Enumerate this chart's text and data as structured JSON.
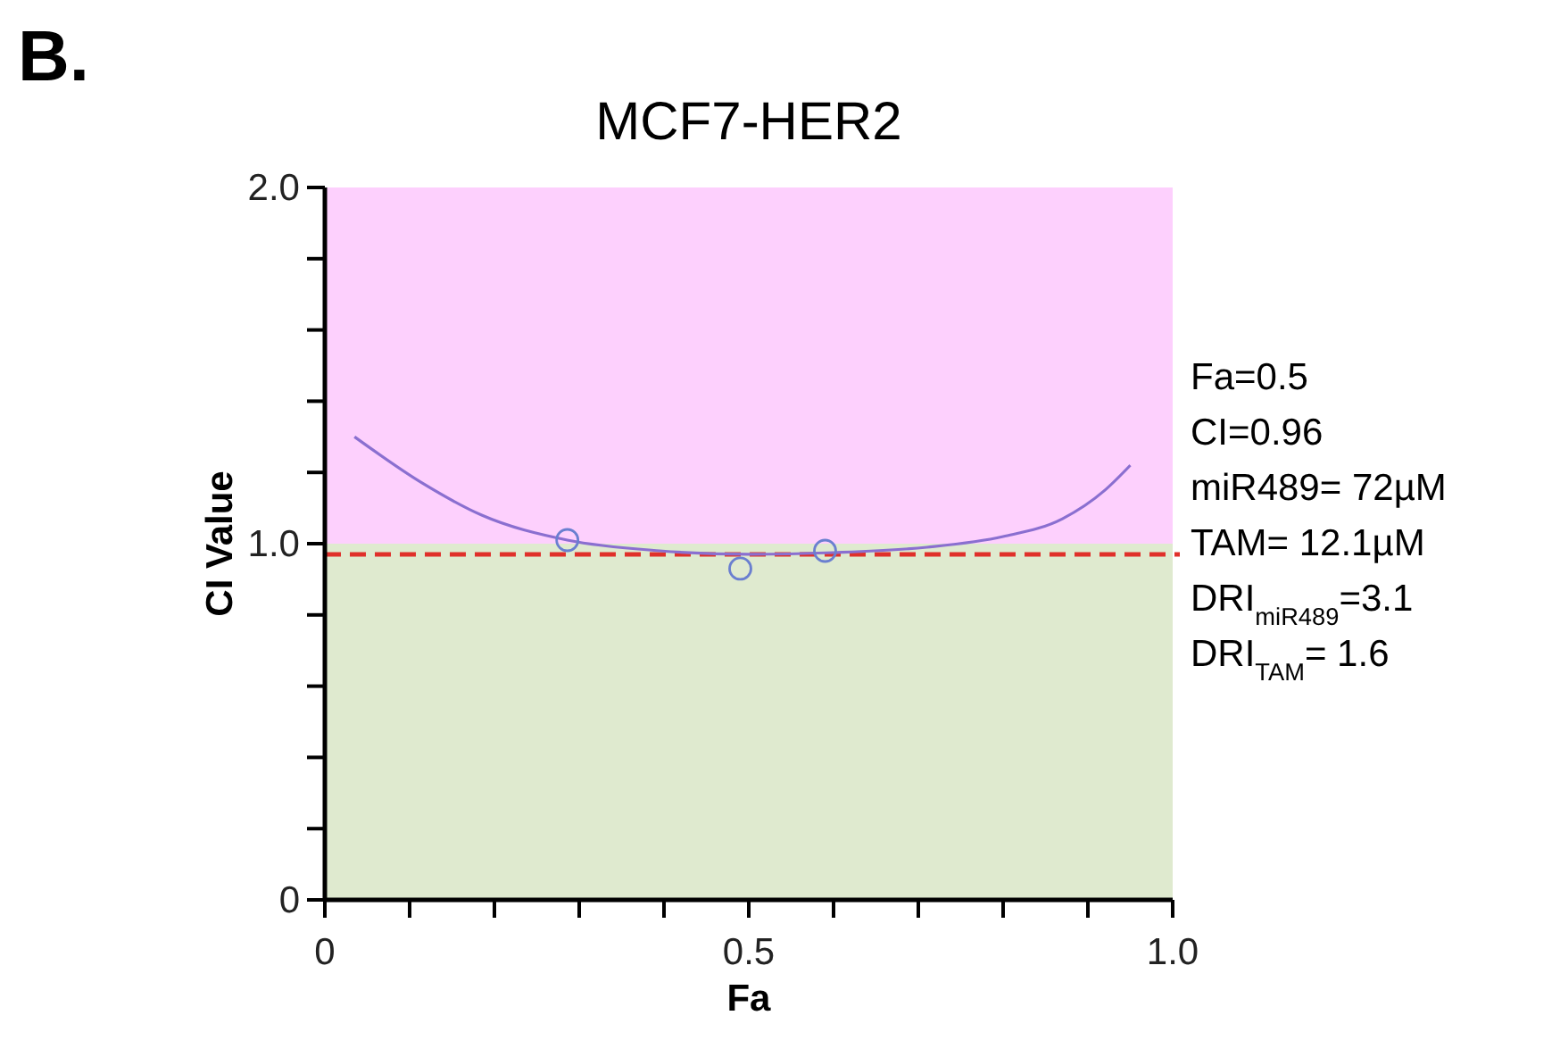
{
  "chart_data": {
    "type": "line",
    "title": "MCF7-HER2",
    "xlabel": "Fa",
    "ylabel": "CI Value",
    "xlim": [
      0,
      1
    ],
    "xticks": [
      0,
      {
        "value": 0.1,
        "label": null
      },
      {
        "value": 0.2,
        "label": null
      },
      {
        "value": 0.3,
        "label": null
      },
      {
        "value": 0.4,
        "label": null
      },
      0.5,
      {
        "value": 0.6,
        "label": null
      },
      {
        "value": 0.7,
        "label": null
      },
      {
        "value": 0.8,
        "label": null
      },
      {
        "value": 0.9,
        "label": null
      },
      {
        "value": 1,
        "label": "1.0"
      }
    ],
    "ylim": [
      0,
      2
    ],
    "yticks": [
      0,
      {
        "value": 0.2,
        "label": null
      },
      {
        "value": 0.4,
        "label": null
      },
      {
        "value": 0.6,
        "label": null
      },
      {
        "value": 0.8,
        "label": null
      },
      {
        "value": 1,
        "label": "1.0"
      },
      {
        "value": 1.2,
        "label": null
      },
      {
        "value": 1.4,
        "label": null
      },
      {
        "value": 1.6,
        "label": null
      },
      {
        "value": 1.8,
        "label": null
      },
      {
        "value": 2,
        "label": "2.0"
      }
    ],
    "bands": [
      {
        "axis": "y",
        "from": 1,
        "to": 2,
        "color": "#fdd0fd"
      },
      {
        "axis": "y",
        "from": 0,
        "to": 1,
        "color": "#dfeacf"
      }
    ],
    "ref_lines": [
      {
        "axis": "y",
        "value": 0.97,
        "color": "#e0302a",
        "line_style": "dashed"
      }
    ],
    "series": [
      {
        "color": "#8a6fd0",
        "marker": "none",
        "x": [
          0.035,
          0.115,
          0.185,
          0.286,
          0.395,
          0.5,
          0.6,
          0.71,
          0.8,
          0.87,
          0.92,
          0.95
        ],
        "values": [
          1.3,
          1.17,
          1.08,
          1.01,
          0.98,
          0.97,
          0.975,
          0.99,
          1.02,
          1.07,
          1.15,
          1.22
        ]
      },
      {
        "type": "scatter",
        "color": "#6a7fd0",
        "marker": "circle",
        "x": [
          0.286,
          0.49,
          0.59
        ],
        "values": [
          1.01,
          0.93,
          0.98
        ]
      }
    ],
    "annotations": [
      "B.",
      "Fa=0.5",
      "CI=0.96",
      "miR489= 72µM",
      "TAM= 12.1µM",
      "DRI$_{miR489}$=3.1",
      "DRI$_{TAM}$= 1.6"
    ]
  }
}
